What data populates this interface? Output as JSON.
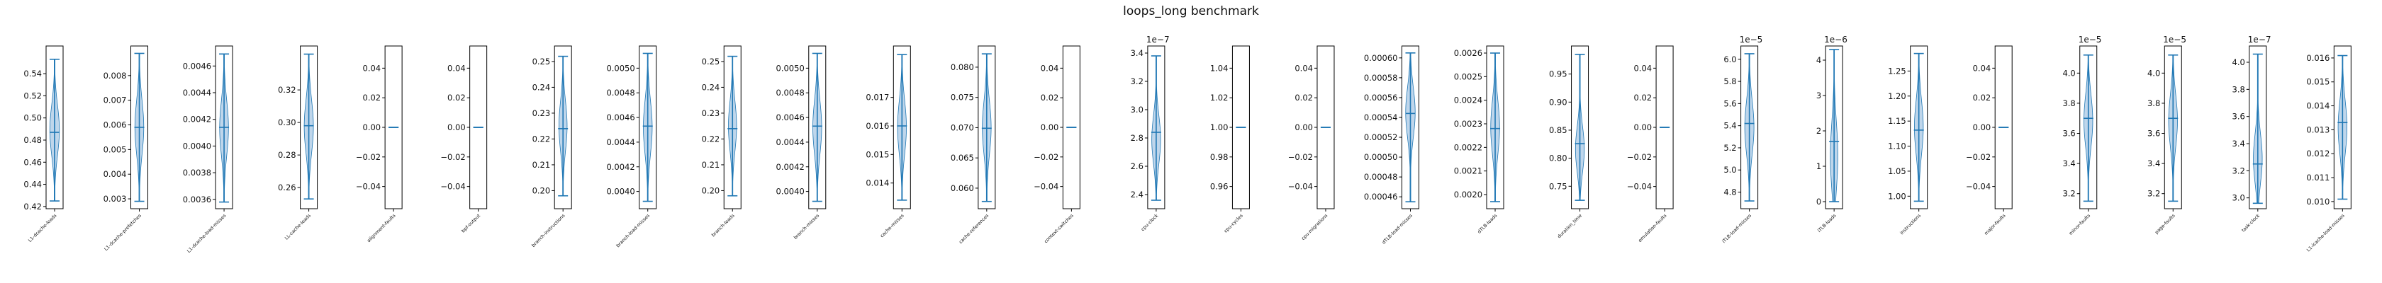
{
  "figure": {
    "title": "loops_long benchmark"
  },
  "style": {
    "violin_fill": "#a9c8e4",
    "violin_edge": "#1f77b4",
    "line_color": "#1f77b4",
    "axis_color": "#000000"
  },
  "chart_data": [
    {
      "type": "violin",
      "label": "L1-dcache-loads",
      "ylim": [
        0.418,
        0.565
      ],
      "ticks": [
        0.42,
        0.44,
        0.46,
        0.48,
        0.5,
        0.52,
        0.54
      ],
      "tick_labels": [
        "0.42",
        "0.44",
        "0.46",
        "0.48",
        "0.50",
        "0.52",
        "0.54"
      ],
      "multiplier": "",
      "min": 0.425,
      "max": 0.553,
      "median": 0.487,
      "width_max": 0.28,
      "peak": 0.5,
      "spread": 0.32,
      "kind": "smooth"
    },
    {
      "type": "violin",
      "label": "L1-dcache-prefetches",
      "ylim": [
        0.0026,
        0.0092
      ],
      "ticks": [
        0.003,
        0.004,
        0.005,
        0.006,
        0.007,
        0.008
      ],
      "tick_labels": [
        "0.003",
        "0.004",
        "0.005",
        "0.006",
        "0.007",
        "0.008"
      ],
      "multiplier": "",
      "min": 0.0029,
      "max": 0.0089,
      "median": 0.0059,
      "width_max": 0.26,
      "peak": 0.5,
      "spread": 0.33,
      "kind": "smooth"
    },
    {
      "type": "violin",
      "label": "L1-dcache-load-misses",
      "ylim": [
        0.00353,
        0.00475
      ],
      "ticks": [
        0.0036,
        0.0038,
        0.004,
        0.0042,
        0.0044,
        0.0046
      ],
      "tick_labels": [
        "0.0036",
        "0.0038",
        "0.0040",
        "0.0042",
        "0.0044",
        "0.0046"
      ],
      "multiplier": "",
      "min": 0.00358,
      "max": 0.00469,
      "median": 0.00414,
      "width_max": 0.26,
      "peak": 0.5,
      "spread": 0.33,
      "kind": "smooth"
    },
    {
      "type": "violin",
      "label": "LL-cache-loads",
      "ylim": [
        0.247,
        0.347
      ],
      "ticks": [
        0.26,
        0.28,
        0.3,
        0.32
      ],
      "tick_labels": [
        "0.26",
        "0.28",
        "0.30",
        "0.32"
      ],
      "multiplier": "",
      "min": 0.253,
      "max": 0.342,
      "median": 0.298,
      "width_max": 0.27,
      "peak": 0.5,
      "spread": 0.33,
      "kind": "smooth"
    },
    {
      "type": "violin",
      "label": "alignment-faults",
      "ylim": [
        -0.055,
        0.055
      ],
      "ticks": [
        -0.04,
        -0.02,
        0.0,
        0.02,
        0.04
      ],
      "tick_labels": [
        "−0.04",
        "−0.02",
        "0.00",
        "0.02",
        "0.04"
      ],
      "multiplier": "",
      "min": 0,
      "max": 0,
      "median": 0,
      "width_max": 0,
      "peak": 0.5,
      "spread": 0.3,
      "kind": "flat"
    },
    {
      "type": "violin",
      "label": "bpf-output",
      "ylim": [
        -0.055,
        0.055
      ],
      "ticks": [
        -0.04,
        -0.02,
        0.0,
        0.02,
        0.04
      ],
      "tick_labels": [
        "−0.04",
        "−0.02",
        "0.00",
        "0.02",
        "0.04"
      ],
      "multiplier": "",
      "min": 0,
      "max": 0,
      "median": 0,
      "width_max": 0,
      "peak": 0.5,
      "spread": 0.3,
      "kind": "flat"
    },
    {
      "type": "violin",
      "label": "branch-instructions",
      "ylim": [
        0.193,
        0.256
      ],
      "ticks": [
        0.2,
        0.21,
        0.22,
        0.23,
        0.24,
        0.25
      ],
      "tick_labels": [
        "0.20",
        "0.21",
        "0.22",
        "0.23",
        "0.24",
        "0.25"
      ],
      "multiplier": "",
      "min": 0.198,
      "max": 0.252,
      "median": 0.224,
      "width_max": 0.24,
      "peak": 0.5,
      "spread": 0.32,
      "kind": "smooth"
    },
    {
      "type": "violin",
      "label": "branch-load-misses",
      "ylim": [
        0.00386,
        0.00518
      ],
      "ticks": [
        0.004,
        0.0042,
        0.0044,
        0.0046,
        0.0048,
        0.005
      ],
      "tick_labels": [
        "0.0040",
        "0.0042",
        "0.0044",
        "0.0046",
        "0.0048",
        "0.0050"
      ],
      "multiplier": "",
      "min": 0.00392,
      "max": 0.00512,
      "median": 0.00453,
      "width_max": 0.26,
      "peak": 0.5,
      "spread": 0.33,
      "kind": "smooth"
    },
    {
      "type": "violin",
      "label": "branch-loads",
      "ylim": [
        0.193,
        0.256
      ],
      "ticks": [
        0.2,
        0.21,
        0.22,
        0.23,
        0.24,
        0.25
      ],
      "tick_labels": [
        "0.20",
        "0.21",
        "0.22",
        "0.23",
        "0.24",
        "0.25"
      ],
      "multiplier": "",
      "min": 0.198,
      "max": 0.252,
      "median": 0.224,
      "width_max": 0.24,
      "peak": 0.5,
      "spread": 0.32,
      "kind": "smooth"
    },
    {
      "type": "violin",
      "label": "branch-misses",
      "ylim": [
        0.00386,
        0.00518
      ],
      "ticks": [
        0.004,
        0.0042,
        0.0044,
        0.0046,
        0.0048,
        0.005
      ],
      "tick_labels": [
        "0.0040",
        "0.0042",
        "0.0044",
        "0.0046",
        "0.0048",
        "0.0050"
      ],
      "multiplier": "",
      "min": 0.00392,
      "max": 0.00512,
      "median": 0.00453,
      "width_max": 0.26,
      "peak": 0.5,
      "spread": 0.33,
      "kind": "smooth"
    },
    {
      "type": "violin",
      "label": "cache-misses",
      "ylim": [
        0.0131,
        0.0188
      ],
      "ticks": [
        0.014,
        0.015,
        0.016,
        0.017
      ],
      "tick_labels": [
        "0.014",
        "0.015",
        "0.016",
        "0.017"
      ],
      "multiplier": "",
      "min": 0.0134,
      "max": 0.0185,
      "median": 0.016,
      "width_max": 0.26,
      "peak": 0.5,
      "spread": 0.33,
      "kind": "smooth"
    },
    {
      "type": "violin",
      "label": "cache-references",
      "ylim": [
        0.0566,
        0.0835
      ],
      "ticks": [
        0.06,
        0.065,
        0.07,
        0.075,
        0.08
      ],
      "tick_labels": [
        "0.060",
        "0.065",
        "0.070",
        "0.075",
        "0.080"
      ],
      "multiplier": "",
      "min": 0.0578,
      "max": 0.0822,
      "median": 0.0699,
      "width_max": 0.26,
      "peak": 0.5,
      "spread": 0.33,
      "kind": "smooth"
    },
    {
      "type": "violin",
      "label": "context-switches",
      "ylim": [
        -0.055,
        0.055
      ],
      "ticks": [
        -0.04,
        -0.02,
        0.0,
        0.02,
        0.04
      ],
      "tick_labels": [
        "−0.04",
        "−0.02",
        "0.00",
        "0.02",
        "0.04"
      ],
      "multiplier": "",
      "min": 0,
      "max": 0,
      "median": 0,
      "width_max": 0,
      "peak": 0.5,
      "spread": 0.3,
      "kind": "flat"
    },
    {
      "type": "violin",
      "label": "cpu-clock",
      "ylim": [
        2.3,
        3.45
      ],
      "ticks": [
        2.4,
        2.6,
        2.8,
        3.0,
        3.2,
        3.4
      ],
      "tick_labels": [
        "2.4",
        "2.6",
        "2.8",
        "3.0",
        "3.2",
        "3.4"
      ],
      "multiplier": "1e−7",
      "min": 2.36,
      "max": 3.38,
      "median": 2.84,
      "width_max": 0.26,
      "peak": 0.42,
      "spread": 0.3,
      "kind": "smooth"
    },
    {
      "type": "violin",
      "label": "cpu-cycles",
      "ylim": [
        0.945,
        1.055
      ],
      "ticks": [
        0.96,
        0.98,
        1.0,
        1.02,
        1.04
      ],
      "tick_labels": [
        "0.96",
        "0.98",
        "1.00",
        "1.02",
        "1.04"
      ],
      "multiplier": "",
      "min": 1,
      "max": 1,
      "median": 1,
      "width_max": 0,
      "peak": 0.5,
      "spread": 0.3,
      "kind": "flat"
    },
    {
      "type": "violin",
      "label": "cpu-migrations",
      "ylim": [
        -0.055,
        0.055
      ],
      "ticks": [
        -0.04,
        -0.02,
        0.0,
        0.02,
        0.04
      ],
      "tick_labels": [
        "−0.04",
        "−0.02",
        "0.00",
        "0.02",
        "0.04"
      ],
      "multiplier": "",
      "min": 0,
      "max": 0,
      "median": 0,
      "width_max": 0,
      "peak": 0.5,
      "spread": 0.3,
      "kind": "flat"
    },
    {
      "type": "violin",
      "label": "dTLB-load-misses",
      "ylim": [
        0.000448,
        0.000612
      ],
      "ticks": [
        0.00046,
        0.00048,
        0.0005,
        0.00052,
        0.00054,
        0.00056,
        0.00058,
        0.0006
      ],
      "tick_labels": [
        "0.00046",
        "0.00048",
        "0.00050",
        "0.00052",
        "0.00054",
        "0.00056",
        "0.00058",
        "0.00060"
      ],
      "multiplier": "",
      "min": 0.000455,
      "max": 0.000605,
      "median": 0.000544,
      "width_max": 0.28,
      "peak": 0.6,
      "spread": 0.3,
      "kind": "smooth"
    },
    {
      "type": "violin",
      "label": "dTLB-loads",
      "ylim": [
        0.00194,
        0.00263
      ],
      "ticks": [
        0.002,
        0.0021,
        0.0022,
        0.0023,
        0.0024,
        0.0025,
        0.0026
      ],
      "tick_labels": [
        "0.0020",
        "0.0021",
        "0.0022",
        "0.0023",
        "0.0024",
        "0.0025",
        "0.0026"
      ],
      "multiplier": "",
      "min": 0.00197,
      "max": 0.0026,
      "median": 0.00228,
      "width_max": 0.26,
      "peak": 0.5,
      "spread": 0.33,
      "kind": "smooth"
    },
    {
      "type": "violin",
      "label": "duration_time",
      "ylim": [
        0.71,
        1.0
      ],
      "ticks": [
        0.75,
        0.8,
        0.85,
        0.9,
        0.95
      ],
      "tick_labels": [
        "0.75",
        "0.80",
        "0.85",
        "0.90",
        "0.95"
      ],
      "multiplier": "",
      "min": 0.725,
      "max": 0.985,
      "median": 0.826,
      "width_max": 0.26,
      "peak": 0.35,
      "spread": 0.28,
      "kind": "smooth"
    },
    {
      "type": "violin",
      "label": "emulation-faults",
      "ylim": [
        -0.055,
        0.055
      ],
      "ticks": [
        -0.04,
        -0.02,
        0.0,
        0.02,
        0.04
      ],
      "tick_labels": [
        "−0.04",
        "−0.02",
        "0.00",
        "0.02",
        "0.04"
      ],
      "multiplier": "",
      "min": 0,
      "max": 0,
      "median": 0,
      "width_max": 0,
      "peak": 0.5,
      "spread": 0.3,
      "kind": "flat"
    },
    {
      "type": "violin",
      "label": "iTLB-load-misses",
      "ylim": [
        4.65,
        6.12
      ],
      "ticks": [
        4.8,
        5.0,
        5.2,
        5.4,
        5.6,
        5.8,
        6.0
      ],
      "tick_labels": [
        "4.8",
        "5.0",
        "5.2",
        "5.4",
        "5.6",
        "5.8",
        "6.0"
      ],
      "multiplier": "1e−5",
      "min": 4.72,
      "max": 6.05,
      "median": 5.42,
      "width_max": 0.27,
      "peak": 0.5,
      "spread": 0.33,
      "kind": "smooth"
    },
    {
      "type": "violin",
      "label": "iTLB-loads",
      "ylim": [
        -0.2,
        4.4
      ],
      "ticks": [
        0,
        1,
        2,
        3,
        4
      ],
      "tick_labels": [
        "0",
        "1",
        "2",
        "3",
        "4"
      ],
      "multiplier": "1e−6",
      "min": 0.0,
      "max": 4.3,
      "median": 1.7,
      "width_max": 0.22,
      "peak": 0.3,
      "spread": 0.4,
      "kind": "smooth"
    },
    {
      "type": "violin",
      "label": "instructions",
      "ylim": [
        0.975,
        1.3
      ],
      "ticks": [
        1.0,
        1.05,
        1.1,
        1.15,
        1.2,
        1.25
      ],
      "tick_labels": [
        "1.00",
        "1.05",
        "1.10",
        "1.15",
        "1.20",
        "1.25"
      ],
      "multiplier": "",
      "min": 0.99,
      "max": 1.285,
      "median": 1.132,
      "width_max": 0.26,
      "peak": 0.5,
      "spread": 0.33,
      "kind": "smooth"
    },
    {
      "type": "violin",
      "label": "major-faults",
      "ylim": [
        -0.055,
        0.055
      ],
      "ticks": [
        -0.04,
        -0.02,
        0.0,
        0.02,
        0.04
      ],
      "tick_labels": [
        "−0.04",
        "−0.02",
        "0.00",
        "0.02",
        "0.04"
      ],
      "multiplier": "",
      "min": 0,
      "max": 0,
      "median": 0,
      "width_max": 0,
      "peak": 0.5,
      "spread": 0.3,
      "kind": "flat"
    },
    {
      "type": "violin",
      "label": "minor-faults",
      "ylim": [
        3.1,
        4.18
      ],
      "ticks": [
        3.2,
        3.4,
        3.6,
        3.8,
        4.0
      ],
      "tick_labels": [
        "3.2",
        "3.4",
        "3.6",
        "3.8",
        "4.0"
      ],
      "multiplier": "1e−5",
      "min": 3.15,
      "max": 4.12,
      "median": 3.7,
      "width_max": 0.26,
      "peak": 0.55,
      "spread": 0.32,
      "kind": "smooth"
    },
    {
      "type": "violin",
      "label": "page-faults",
      "ylim": [
        3.1,
        4.18
      ],
      "ticks": [
        3.2,
        3.4,
        3.6,
        3.8,
        4.0
      ],
      "tick_labels": [
        "3.2",
        "3.4",
        "3.6",
        "3.8",
        "4.0"
      ],
      "multiplier": "1e−5",
      "min": 3.15,
      "max": 4.12,
      "median": 3.7,
      "width_max": 0.26,
      "peak": 0.55,
      "spread": 0.32,
      "kind": "smooth"
    },
    {
      "type": "violin",
      "label": "task-clock",
      "ylim": [
        2.92,
        4.12
      ],
      "ticks": [
        3.0,
        3.2,
        3.4,
        3.6,
        3.8,
        4.0
      ],
      "tick_labels": [
        "3.0",
        "3.2",
        "3.4",
        "3.6",
        "3.8",
        "4.0"
      ],
      "multiplier": "1e−7",
      "min": 2.96,
      "max": 4.06,
      "median": 3.25,
      "width_max": 0.26,
      "peak": 0.3,
      "spread": 0.3,
      "kind": "smooth"
    },
    {
      "type": "violin",
      "label": "L1-icache-load-misses",
      "ylim": [
        0.0097,
        0.0165
      ],
      "ticks": [
        0.01,
        0.011,
        0.012,
        0.013,
        0.014,
        0.015,
        0.016
      ],
      "tick_labels": [
        "0.010",
        "0.011",
        "0.012",
        "0.013",
        "0.014",
        "0.015",
        "0.016"
      ],
      "multiplier": "",
      "min": 0.0101,
      "max": 0.0161,
      "median": 0.0133,
      "width_max": 0.26,
      "peak": 0.5,
      "spread": 0.33,
      "kind": "smooth"
    }
  ]
}
